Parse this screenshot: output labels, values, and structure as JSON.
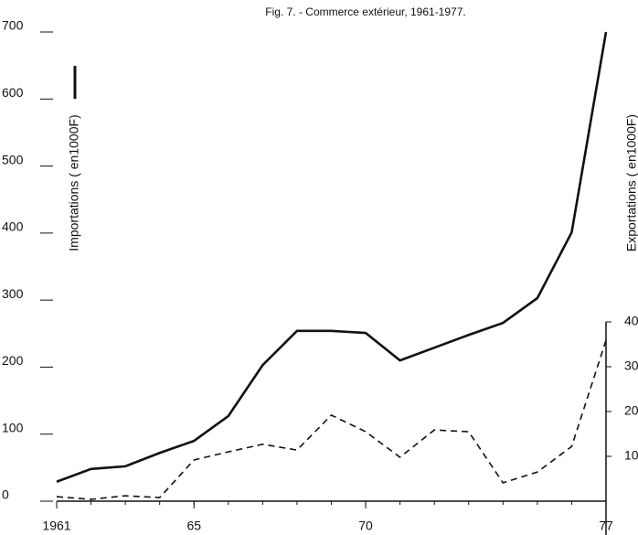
{
  "chart_data": {
    "type": "line",
    "title": "Fig. 7. - Commerce extérieur, 1961-1977.",
    "ylabel": "Importations ( en1000F)",
    "y2label": "Exportations ( en1000F)",
    "x": [
      1961,
      1962,
      1963,
      1964,
      1965,
      1966,
      1967,
      1968,
      1969,
      1970,
      1971,
      1972,
      1973,
      1974,
      1975,
      1976,
      1977
    ],
    "xlim": [
      1961,
      1977
    ],
    "xticks": [
      {
        "value": 1961,
        "label": "1961"
      },
      {
        "value": 1965,
        "label": "65"
      },
      {
        "value": 1970,
        "label": "70"
      },
      {
        "value": 1977,
        "label": "77"
      }
    ],
    "ylim": [
      0,
      700
    ],
    "yticks": [
      0,
      100,
      200,
      300,
      400,
      500,
      600,
      700
    ],
    "y2lim": [
      0,
      40
    ],
    "y2ticks": [
      10,
      20,
      30,
      40
    ],
    "series": [
      {
        "color": "#111",
        "dash": false,
        "values": [
          29,
          48,
          52,
          72,
          90,
          127,
          203,
          254,
          254,
          251,
          210,
          229,
          248,
          266,
          303,
          401,
          700
        ]
      },
      {
        "color": "#111",
        "dash": true,
        "axis": "y2",
        "values": [
          1.0,
          0.4,
          1.2,
          0.8,
          9.2,
          11.0,
          12.7,
          11.4,
          19.2,
          15.5,
          9.8,
          15.9,
          15.5,
          4.1,
          6.5,
          12.2,
          35.9
        ]
      }
    ]
  }
}
